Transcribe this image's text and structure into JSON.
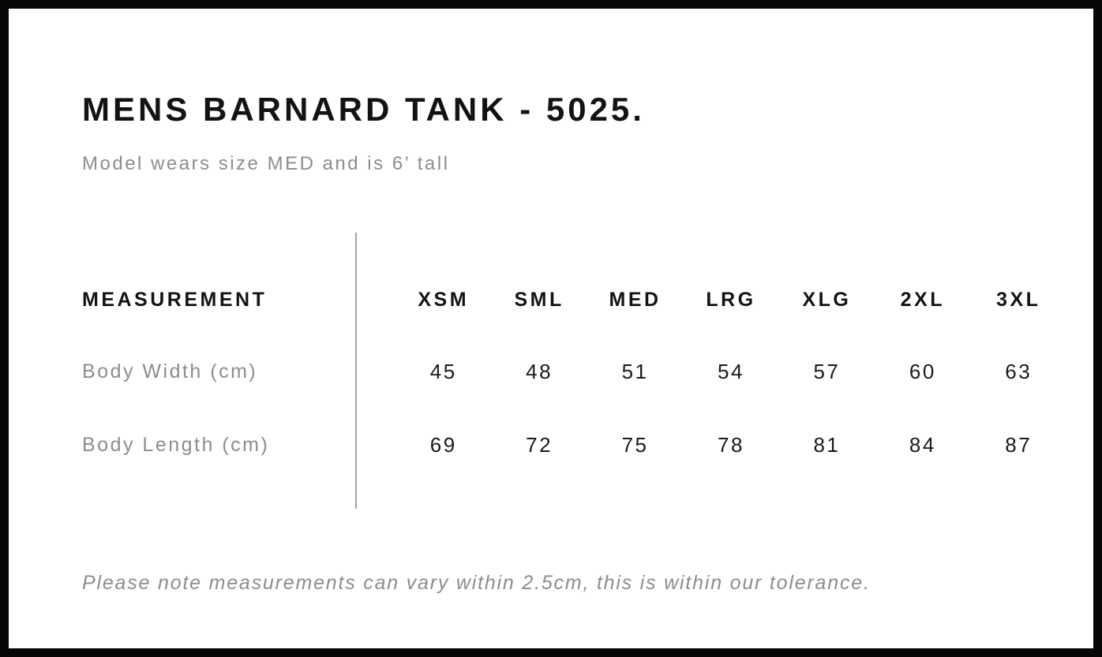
{
  "page": {
    "title": "MENS BARNARD TANK - 5025.",
    "subtitle": "Model wears size MED and is 6’ tall",
    "footnote": "Please note measurements can vary within 2.5cm, this is within our tolerance."
  },
  "size_chart": {
    "measurement_header": "MEASUREMENT",
    "size_headers": [
      "XSM",
      "SML",
      "MED",
      "LRG",
      "XLG",
      "2XL",
      "3XL"
    ],
    "rows": [
      {
        "label": "Body Width (cm)",
        "values": [
          "45",
          "48",
          "51",
          "54",
          "57",
          "60",
          "63"
        ]
      },
      {
        "label": "Body Length (cm)",
        "values": [
          "69",
          "72",
          "75",
          "78",
          "81",
          "84",
          "87"
        ]
      }
    ]
  },
  "colors": {
    "text_primary": "#131313",
    "text_muted": "#8d8d8d",
    "divider": "#a3a3a3",
    "frame_border": "#060606",
    "background": "#ffffff"
  }
}
